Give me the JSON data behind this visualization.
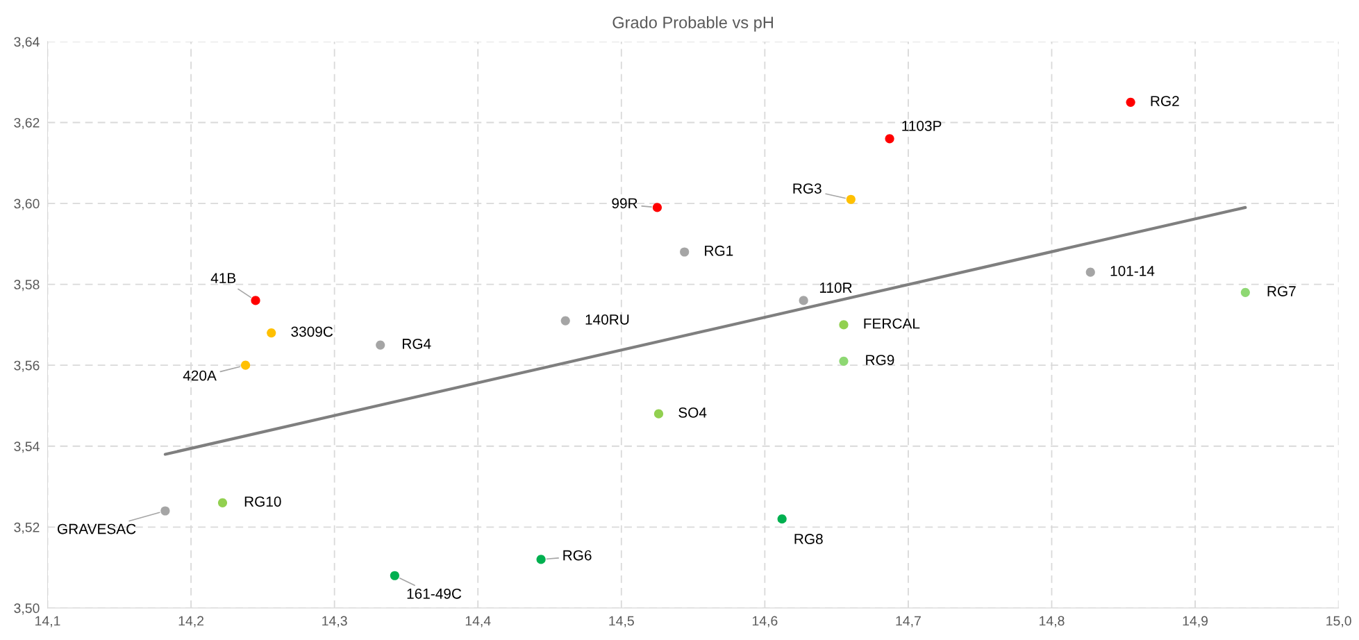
{
  "chart_data": {
    "type": "scatter",
    "title": "Grado Probable vs pH",
    "xlim": [
      14.1,
      15.0
    ],
    "xticks": [
      {
        "value": 14.1,
        "label": "14,1"
      },
      {
        "value": 14.2,
        "label": "14,2"
      },
      {
        "value": 14.3,
        "label": "14,3"
      },
      {
        "value": 14.4,
        "label": "14,4"
      },
      {
        "value": 14.5,
        "label": "14,5"
      },
      {
        "value": 14.6,
        "label": "14,6"
      },
      {
        "value": 14.7,
        "label": "14,7"
      },
      {
        "value": 14.8,
        "label": "14,8"
      },
      {
        "value": 14.9,
        "label": "14,9"
      },
      {
        "value": 15.0,
        "label": "15,0"
      }
    ],
    "ylim": [
      3.5,
      3.64
    ],
    "yticks": [
      {
        "value": 3.5,
        "label": "3,50"
      },
      {
        "value": 3.52,
        "label": "3,52"
      },
      {
        "value": 3.54,
        "label": "3,54"
      },
      {
        "value": 3.56,
        "label": "3,56"
      },
      {
        "value": 3.58,
        "label": "3,58"
      },
      {
        "value": 3.6,
        "label": "3,60"
      },
      {
        "value": 3.62,
        "label": "3,62"
      },
      {
        "value": 3.64,
        "label": "3,64"
      }
    ],
    "grid": true,
    "series": [
      {
        "marker": "circle",
        "x": [
          14.855,
          14.687,
          14.66,
          14.525,
          14.544,
          14.827,
          14.935,
          14.627,
          14.245,
          14.256,
          14.461,
          14.332,
          14.655,
          14.655,
          14.238,
          14.526,
          14.222,
          14.182,
          14.612,
          14.444,
          14.342
        ],
        "values": [
          3.625,
          3.616,
          3.601,
          3.599,
          3.588,
          3.583,
          3.578,
          3.576,
          3.576,
          3.568,
          3.571,
          3.565,
          3.57,
          3.561,
          3.56,
          3.548,
          3.526,
          3.524,
          3.522,
          3.512,
          3.508
        ],
        "colors": [
          "#ff0000",
          "#ff0000",
          "#ffc000",
          "#ff0000",
          "#a5a5a5",
          "#a5a5a5",
          "#8ed873",
          "#a5a5a5",
          "#ff0000",
          "#ffc000",
          "#a5a5a5",
          "#a5a5a5",
          "#92d050",
          "#8ed873",
          "#ffc000",
          "#92d050",
          "#92d050",
          "#a5a5a5",
          "#00b050",
          "#00b050",
          "#00b050"
        ]
      },
      {
        "type": "line",
        "x": [
          14.182,
          14.935
        ],
        "values": [
          3.538,
          3.599
        ],
        "color": "#7f7f7f"
      }
    ],
    "annotations": [
      {
        "text": "RG2",
        "x": 14.855,
        "y": 3.625
      },
      {
        "text": "1103P",
        "x": 14.687,
        "y": 3.616
      },
      {
        "text": "RG3",
        "x": 14.66,
        "y": 3.601
      },
      {
        "text": "99R",
        "x": 14.525,
        "y": 3.599
      },
      {
        "text": "RG1",
        "x": 14.544,
        "y": 3.588
      },
      {
        "text": "101-14",
        "x": 14.827,
        "y": 3.583
      },
      {
        "text": "RG7",
        "x": 14.935,
        "y": 3.578
      },
      {
        "text": "110R",
        "x": 14.627,
        "y": 3.576
      },
      {
        "text": "41B",
        "x": 14.245,
        "y": 3.576
      },
      {
        "text": "3309C",
        "x": 14.256,
        "y": 3.568
      },
      {
        "text": "140RU",
        "x": 14.461,
        "y": 3.571
      },
      {
        "text": "RG4",
        "x": 14.332,
        "y": 3.565
      },
      {
        "text": "FERCAL",
        "x": 14.655,
        "y": 3.57
      },
      {
        "text": "RG9",
        "x": 14.655,
        "y": 3.561
      },
      {
        "text": "420A",
        "x": 14.238,
        "y": 3.56
      },
      {
        "text": "SO4",
        "x": 14.526,
        "y": 3.548
      },
      {
        "text": "RG10",
        "x": 14.222,
        "y": 3.526
      },
      {
        "text": "GRAVESAC",
        "x": 14.182,
        "y": 3.524
      },
      {
        "text": "RG8",
        "x": 14.612,
        "y": 3.522
      },
      {
        "text": "RG6",
        "x": 14.444,
        "y": 3.512
      },
      {
        "text": "161-49C",
        "x": 14.342,
        "y": 3.508
      }
    ]
  }
}
